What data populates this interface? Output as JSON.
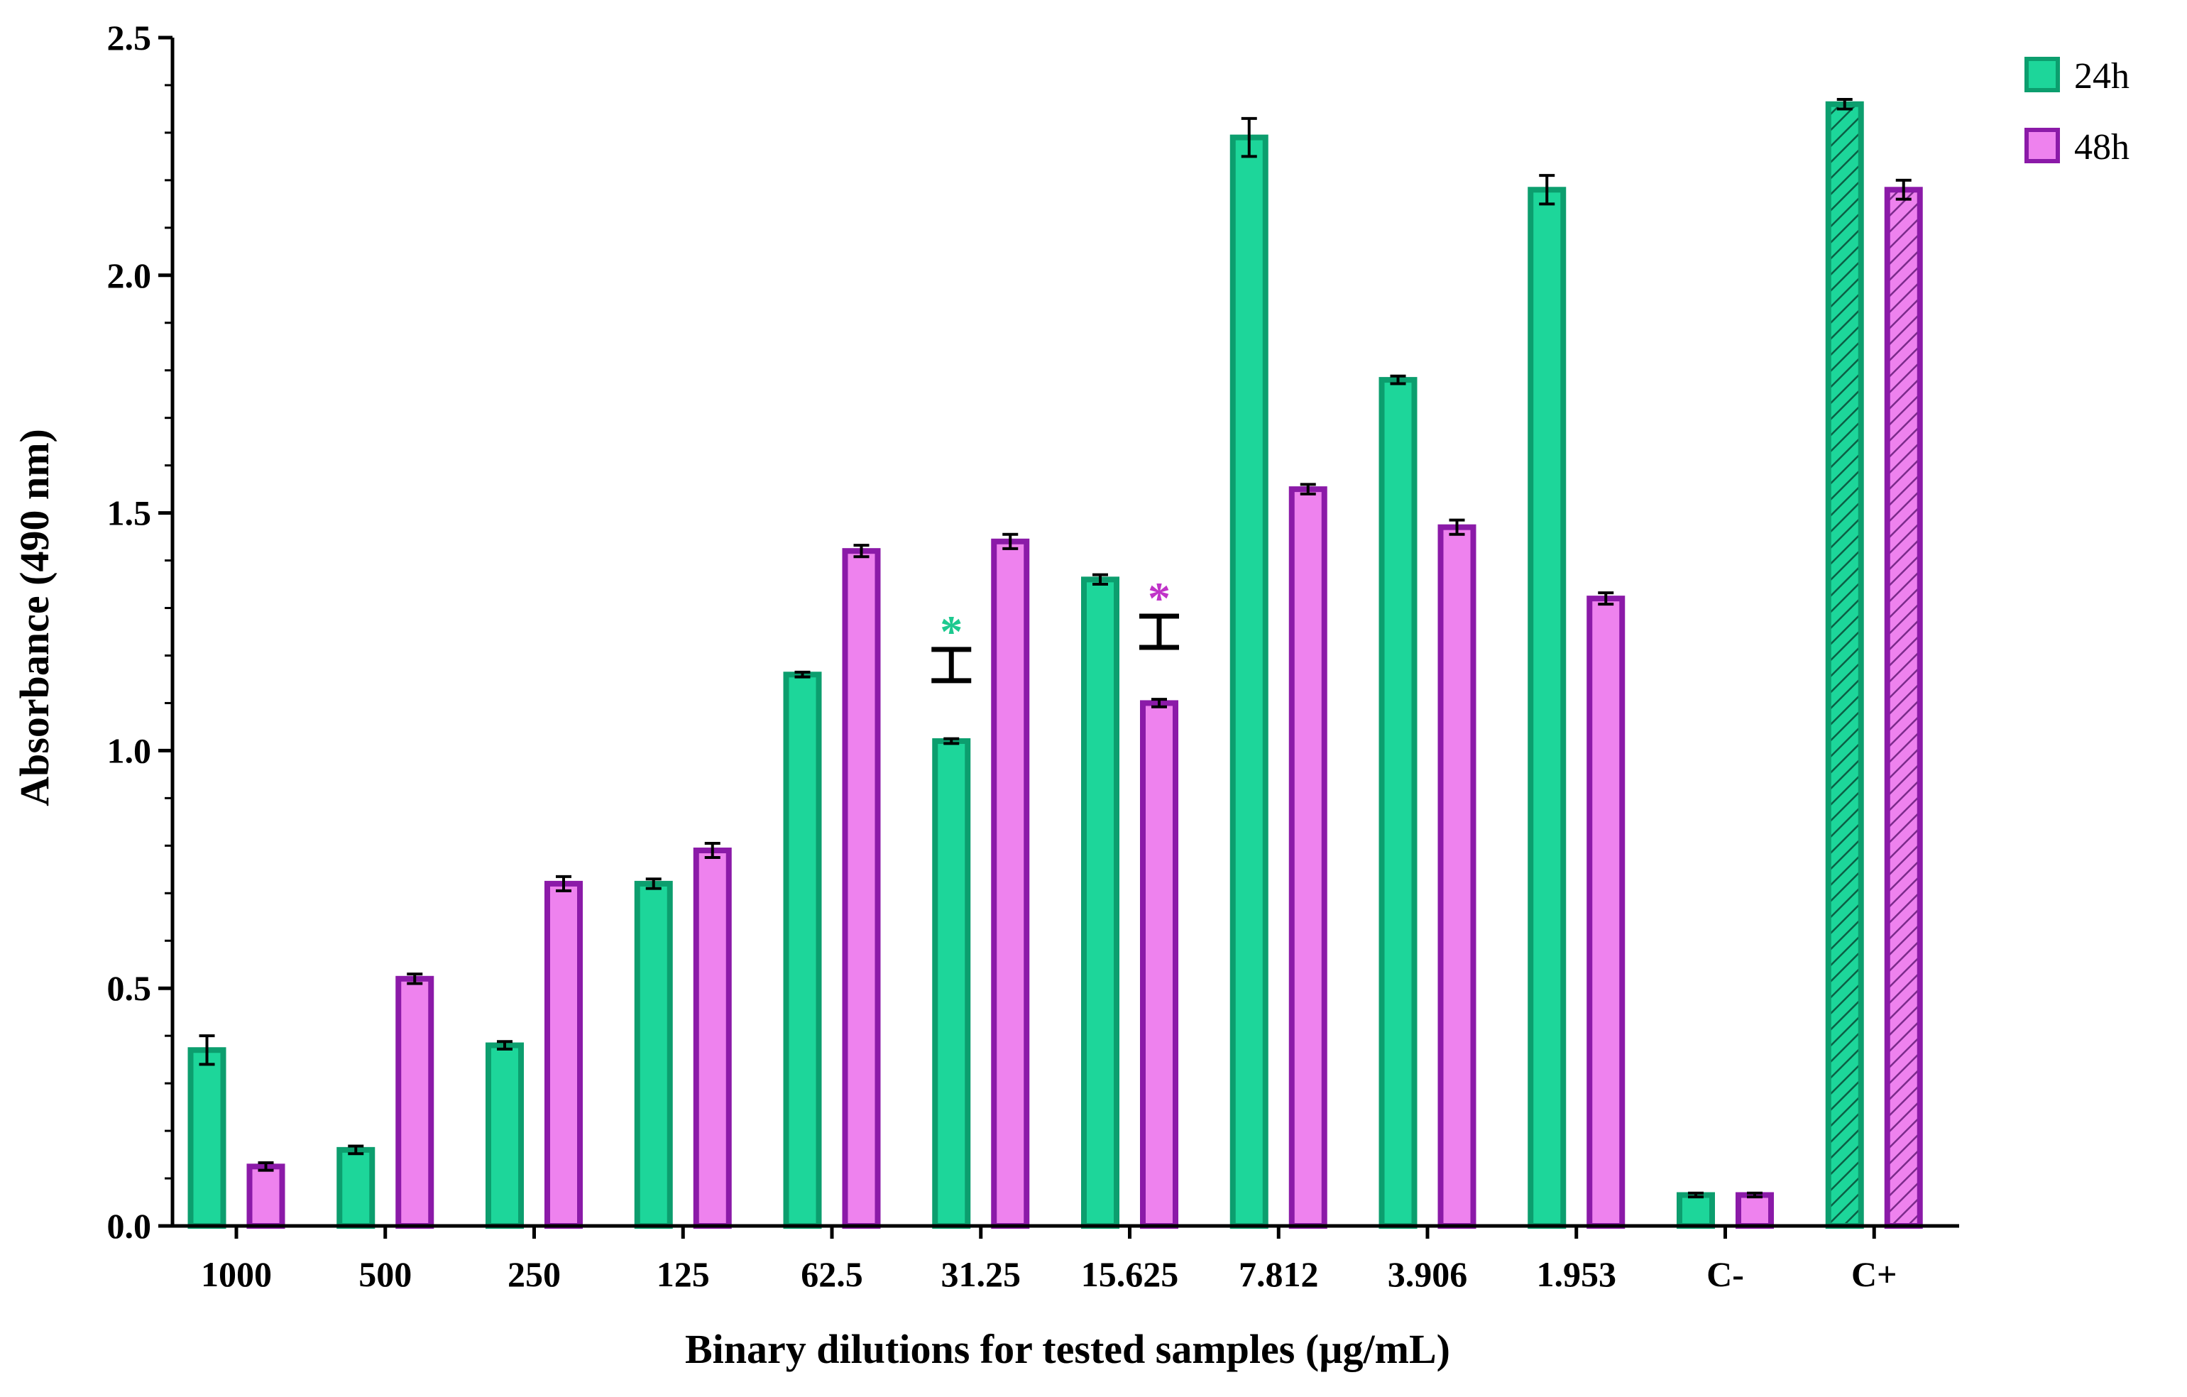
{
  "chart_data": {
    "type": "bar",
    "xlabel": "Binary dilutions for tested samples (µg/mL)",
    "ylabel": "Absorbance (490 nm)",
    "ylim": [
      0,
      2.5
    ],
    "yticks": [
      "0.0",
      "0.5",
      "1.0",
      "1.5",
      "2.0",
      "2.5"
    ],
    "categories": [
      "1000",
      "500",
      "250",
      "125",
      "62.5",
      "31.25",
      "15.625",
      "7.812",
      "3.906",
      "1.953",
      "C-",
      "C+"
    ],
    "series": [
      {
        "name": "24h",
        "fill": "#1dd69a",
        "stroke": "#0c9e6e",
        "values": [
          0.37,
          0.16,
          0.38,
          0.72,
          1.16,
          1.02,
          1.36,
          2.29,
          1.78,
          2.18,
          0.065,
          2.36
        ],
        "errors": [
          0.03,
          0.008,
          0.008,
          0.01,
          0.005,
          0.005,
          0.01,
          0.04,
          0.008,
          0.03,
          0.004,
          0.01
        ]
      },
      {
        "name": "48h",
        "fill": "#ee82ee",
        "stroke": "#8b1aa8",
        "values": [
          0.125,
          0.52,
          0.72,
          0.79,
          1.42,
          1.44,
          1.1,
          1.55,
          1.47,
          1.32,
          0.065,
          2.18
        ],
        "errors": [
          0.008,
          0.01,
          0.015,
          0.015,
          0.012,
          0.015,
          0.008,
          0.01,
          0.015,
          0.012,
          0.004,
          0.02
        ]
      }
    ],
    "hatched_categories": [
      "C+"
    ],
    "annotations": [
      {
        "category": "31.25",
        "series": "24h",
        "text": "*",
        "color": "#1dc98f",
        "level": 1.18
      },
      {
        "category": "15.625",
        "series": "48h",
        "text": "*",
        "color": "#c033c8",
        "level": 1.25
      }
    ],
    "legend": {
      "placement": "top-right",
      "entries": [
        "24h",
        "48h"
      ]
    },
    "grid": false
  }
}
